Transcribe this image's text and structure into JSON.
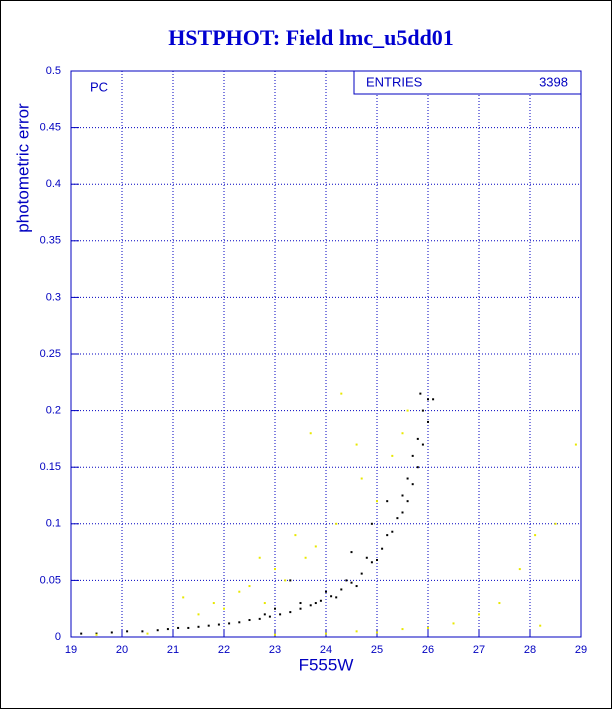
{
  "chart_data": {
    "type": "scatter",
    "title": "HSTPHOT: Field lmc_u5dd01",
    "x_label": "F555W",
    "y_label": "photometric error",
    "annotations": [
      "PC"
    ],
    "stats": {
      "label": "ENTRIES",
      "value": 3398
    },
    "xlim": [
      19,
      29
    ],
    "ylim": [
      0,
      0.5
    ],
    "xticks": [
      19,
      20,
      21,
      22,
      23,
      24,
      25,
      26,
      27,
      28,
      29
    ],
    "yticks": [
      0,
      0.05,
      0.1,
      0.15,
      0.2,
      0.25,
      0.3,
      0.35,
      0.4,
      0.45,
      0.5
    ],
    "grid": true,
    "series": [
      {
        "color": "#000000",
        "x": [
          19.2,
          19.5,
          19.8,
          20.1,
          20.4,
          20.7,
          20.9,
          21.1,
          21.3,
          21.5,
          21.7,
          21.9,
          22.1,
          22.3,
          22.5,
          22.7,
          22.9,
          23.1,
          23.3,
          23.5,
          23.7,
          23.9,
          24.1,
          24.3,
          24.5,
          24.7,
          24.9,
          25.1,
          25.3,
          25.5,
          25.6,
          25.7,
          25.8,
          25.9,
          26.0,
          26.1,
          23.0,
          23.5,
          24.0,
          24.4,
          24.8,
          25.2,
          25.4,
          25.6,
          25.8,
          25.9,
          24.6,
          25.0,
          23.8,
          22.8,
          24.2,
          25.5,
          25.7,
          26.0,
          25.85,
          24.9,
          24.5,
          23.3,
          25.2
        ],
        "y": [
          0.003,
          0.003,
          0.004,
          0.005,
          0.005,
          0.006,
          0.007,
          0.008,
          0.008,
          0.009,
          0.01,
          0.011,
          0.012,
          0.013,
          0.015,
          0.016,
          0.018,
          0.02,
          0.022,
          0.025,
          0.028,
          0.032,
          0.036,
          0.042,
          0.048,
          0.056,
          0.066,
          0.078,
          0.093,
          0.11,
          0.12,
          0.135,
          0.15,
          0.17,
          0.19,
          0.21,
          0.025,
          0.03,
          0.04,
          0.05,
          0.07,
          0.09,
          0.105,
          0.14,
          0.175,
          0.2,
          0.045,
          0.068,
          0.03,
          0.02,
          0.035,
          0.125,
          0.16,
          0.21,
          0.215,
          0.1,
          0.075,
          0.05,
          0.12
        ]
      },
      {
        "color": "#e8e800",
        "x": [
          21.2,
          21.5,
          21.8,
          22.0,
          22.3,
          22.5,
          22.8,
          23.0,
          23.2,
          23.6,
          23.8,
          23.4,
          24.2,
          24.3,
          24.6,
          24.7,
          25.0,
          25.3,
          25.5,
          25.6,
          23.7,
          22.7,
          24.6,
          25.0,
          25.5,
          26.0,
          26.5,
          27.0,
          27.4,
          27.8,
          28.1,
          28.5,
          28.9,
          28.2,
          23.0,
          24.0,
          20.5,
          19.5
        ],
        "y": [
          0.035,
          0.02,
          0.03,
          0.025,
          0.04,
          0.045,
          0.03,
          0.06,
          0.05,
          0.07,
          0.08,
          0.09,
          0.1,
          0.215,
          0.17,
          0.14,
          0.12,
          0.16,
          0.18,
          0.2,
          0.18,
          0.07,
          0.005,
          0.004,
          0.007,
          0.008,
          0.012,
          0.02,
          0.03,
          0.06,
          0.09,
          0.1,
          0.17,
          0.01,
          0.002,
          0.003,
          0.003,
          0.002
        ]
      }
    ]
  }
}
